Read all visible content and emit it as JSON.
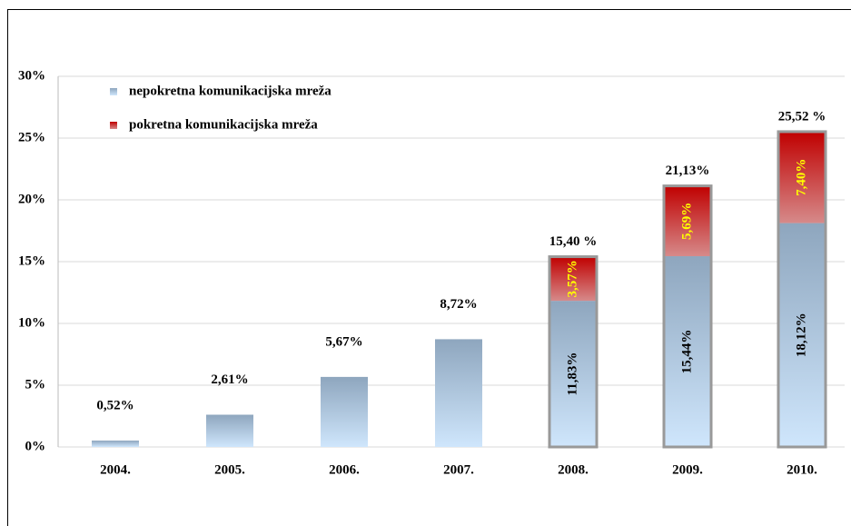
{
  "chart_data": {
    "type": "stacked-bar",
    "categories": [
      "2004.",
      "2005.",
      "2006.",
      "2007.",
      "2008.",
      "2009.",
      "2010."
    ],
    "series": [
      {
        "name": "nepokretna komunikacijska mreža",
        "color": "#9db4cc",
        "values": [
          0.52,
          2.61,
          5.67,
          8.72,
          11.83,
          15.44,
          18.12
        ],
        "value_labels": [
          "0,52%",
          "2,61%",
          "5,67%",
          "8,72%",
          "11,83%",
          "15,44%",
          "18,12%"
        ]
      },
      {
        "name": "pokretna komunikacijska mreža",
        "color": "#c00000",
        "values": [
          null,
          null,
          null,
          null,
          3.57,
          5.69,
          7.4
        ],
        "value_labels": [
          null,
          null,
          null,
          null,
          "3,57%",
          "5,69%",
          "7,40%"
        ]
      }
    ],
    "totals": [
      null,
      null,
      null,
      null,
      15.4,
      21.13,
      25.52
    ],
    "total_labels": [
      null,
      null,
      null,
      null,
      "15,40 %",
      "21,13%",
      "25,52 %"
    ],
    "ylim": [
      0,
      30
    ],
    "yticks": [
      {
        "value": 0,
        "label": "0%"
      },
      {
        "value": 5,
        "label": "5%"
      },
      {
        "value": 10,
        "label": "10%"
      },
      {
        "value": 15,
        "label": "15%"
      },
      {
        "value": 20,
        "label": "20%"
      },
      {
        "value": 25,
        "label": "25%"
      },
      {
        "value": 30,
        "label": "30%"
      }
    ],
    "grid": true,
    "legend": "top-left"
  }
}
